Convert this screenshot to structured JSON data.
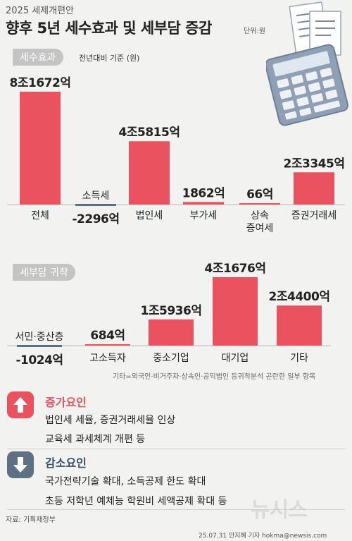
{
  "header": {
    "subtitle": "2025 세제개편안",
    "title": "향후 5년 세수효과 및 세부담 증감",
    "unit": "단위:원"
  },
  "section1": {
    "label": "세수효과",
    "note": "전년대비 기준 (원)"
  },
  "section2": {
    "label": "세부담 귀착"
  },
  "chart_data": [
    {
      "type": "bar",
      "title": "세수효과",
      "categories": [
        "전체",
        "소득세",
        "법인세",
        "부가세",
        "상속 증여세",
        "증권거래세"
      ],
      "values": [
        81672,
        -2296,
        45815,
        1862,
        66,
        23345
      ],
      "value_unit": "억",
      "data_labels": [
        "8조1672억",
        "-2296억",
        "4조5815억",
        "1862억",
        "66억",
        "2조3345억"
      ],
      "color": "#e9525e",
      "negative_color": "#5f7084"
    },
    {
      "type": "bar",
      "title": "세부담 귀착",
      "categories": [
        "서민·중산층",
        "고소득자",
        "중소기업",
        "대기업",
        "기타"
      ],
      "values": [
        -1024,
        684,
        15936,
        41676,
        24400
      ],
      "value_unit": "억",
      "data_labels": [
        "-1024억",
        "684억",
        "1조5936억",
        "4조1676억",
        "2조4400억"
      ],
      "color": "#e9525e",
      "negative_color": "#5f7084"
    }
  ],
  "note": "기타=외국인·비거주자·상속인·공익법인 등귀착분석 곤란한 일부 항목",
  "increase": {
    "title": "증가요인",
    "items": [
      "법인세 세율, 증권거래세율 인상",
      "교육세 과세체계 개편 등"
    ],
    "icon": "arrow-up-icon"
  },
  "decrease": {
    "title": "감소요인",
    "items": [
      "국가전략기술 확대, 소득공제 한도 확대",
      "초등 저학년 예체능 학원비 세액공제 확대 등"
    ],
    "icon": "arrow-down-icon"
  },
  "source": "자료: 기획재정부",
  "credit": "25.07.31 안지혜 기자 hokma@newsis.com",
  "logo": "뉴시스"
}
